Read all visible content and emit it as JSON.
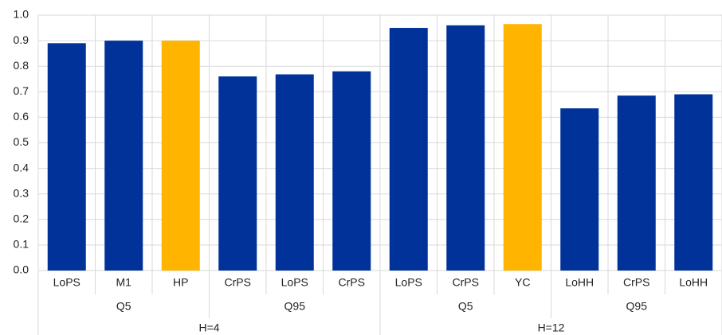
{
  "chart_data": {
    "type": "bar",
    "categories": [
      "LoPS",
      "M1",
      "HP",
      "CrPS",
      "LoPS",
      "CrPS",
      "LoPS",
      "CrPS",
      "YC",
      "LoHH",
      "CrPS",
      "LoHH"
    ],
    "values": [
      0.89,
      0.9,
      0.9,
      0.76,
      0.768,
      0.78,
      0.95,
      0.96,
      0.965,
      0.635,
      0.685,
      0.69
    ],
    "bar_colors": [
      "#003299",
      "#003299",
      "#ffb400",
      "#003299",
      "#003299",
      "#003299",
      "#003299",
      "#003299",
      "#ffb400",
      "#003299",
      "#003299",
      "#003299"
    ],
    "groups": [
      {
        "label": "Q5",
        "span": 3
      },
      {
        "label": "Q95",
        "span": 3
      },
      {
        "label": "Q5",
        "span": 3
      },
      {
        "label": "Q95",
        "span": 3
      }
    ],
    "top_groups": [
      {
        "label": "H=4",
        "span": 6
      },
      {
        "label": "H=12",
        "span": 6
      }
    ],
    "ylim": [
      0,
      1
    ],
    "yticks": [
      {
        "value": 0,
        "label": "0.0"
      },
      0.1,
      0.2,
      0.3,
      0.4,
      0.5,
      0.6,
      0.7,
      0.8,
      0.9,
      {
        "value": 1,
        "label": "1.0"
      }
    ],
    "grid": true
  }
}
